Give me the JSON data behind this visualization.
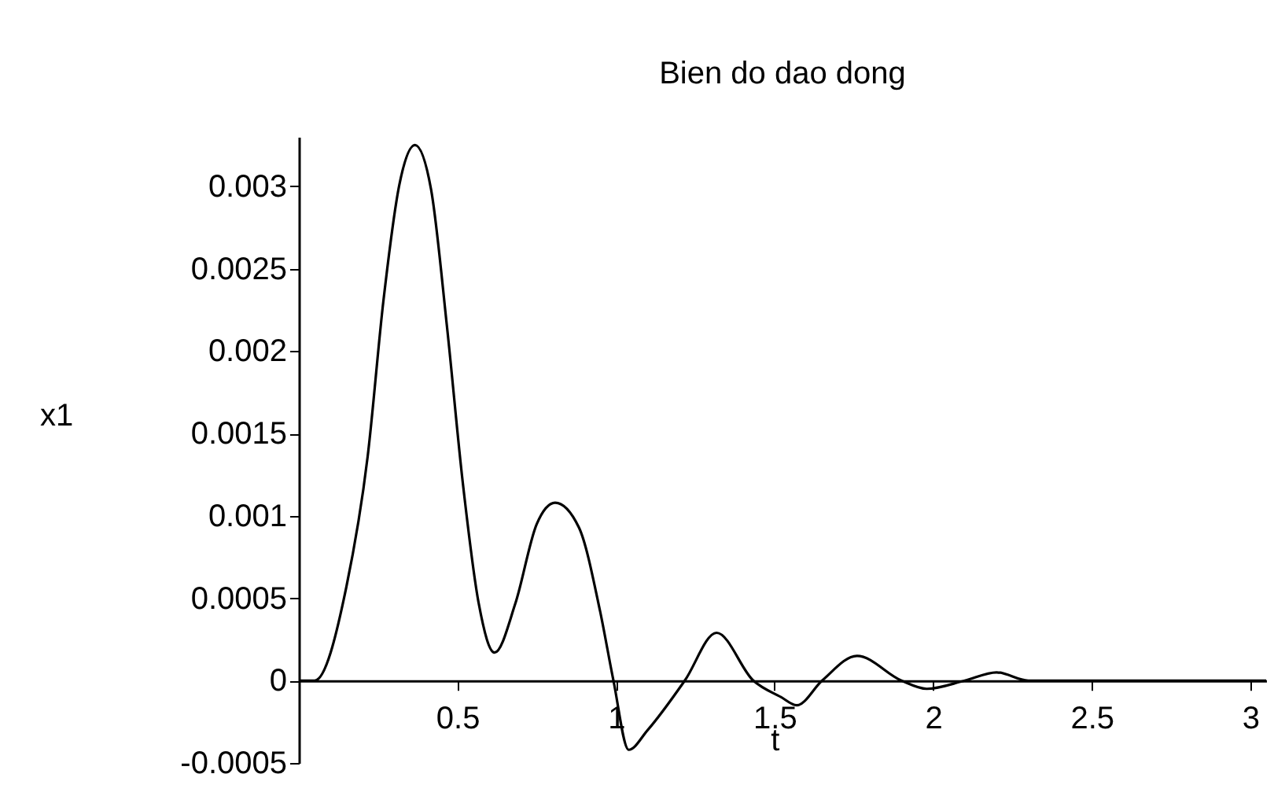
{
  "chart_data": {
    "type": "line",
    "title": "Bien do dao dong",
    "xlabel": "t",
    "ylabel": "x1",
    "x": [
      0,
      0.05,
      0.15,
      0.217,
      0.267,
      0.317,
      0.366,
      0.417,
      0.467,
      0.517,
      0.567,
      0.617,
      0.683,
      0.75,
      0.808,
      0.883,
      0.95,
      0.992,
      1.04,
      1.1,
      1.217,
      1.317,
      1.433,
      1.52,
      1.57,
      1.65,
      1.76,
      1.9,
      1.98,
      2.1,
      2.2,
      2.3,
      2.4,
      2.5,
      2.6,
      2.7,
      2.8,
      3.05
    ],
    "series": [
      {
        "color": "#000000",
        "values": [
          0,
          0,
          0.00057,
          0.00136,
          0.00231,
          0.00301,
          0.00325,
          0.00298,
          0.00215,
          0.0012,
          0.00047,
          0.00017,
          0.00047,
          0.00095,
          0.00108,
          0.00093,
          0.00042,
          0,
          -0.00042,
          -0.0003,
          0,
          0.00029,
          0,
          -0.0001,
          -0.00015,
          0,
          0.00015,
          0,
          -5e-05,
          0,
          5e-05,
          0,
          0,
          0,
          0,
          0,
          0,
          0
        ]
      }
    ],
    "xlim": [
      0,
      3.05
    ],
    "ylim": [
      -0.0005,
      0.0033
    ],
    "xticks": [
      0.5,
      1,
      1.5,
      2,
      2.5,
      3
    ],
    "yticks": [
      -0.0005,
      0,
      0.0005,
      0.001,
      0.0015,
      0.002,
      0.0025,
      0.003
    ],
    "grid": false,
    "legend": false,
    "marker": "none",
    "line_style": "solid"
  }
}
